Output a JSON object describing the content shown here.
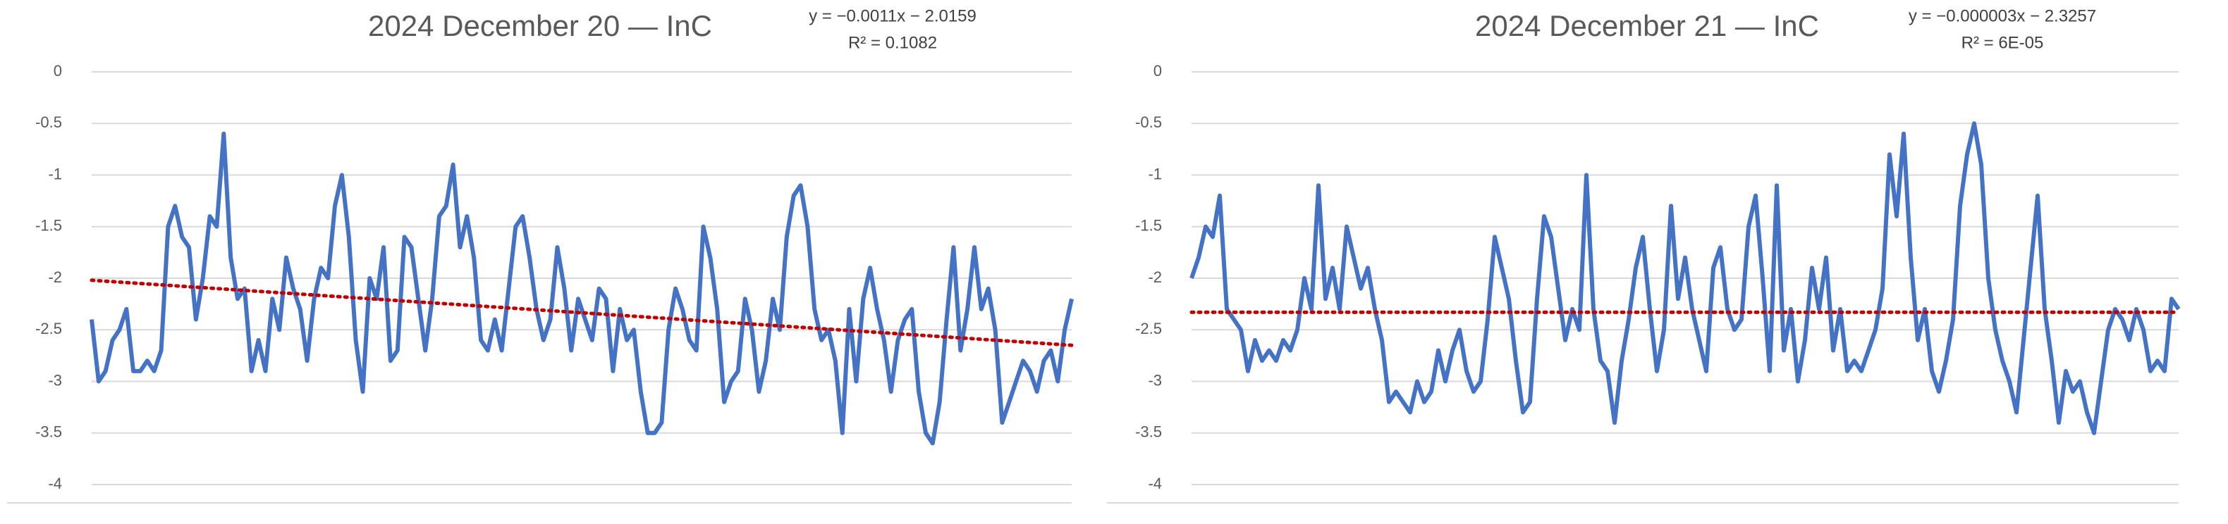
{
  "chart_data": [
    {
      "type": "line",
      "title": "2024 December 20 — InC",
      "series": [
        {
          "color": "#4472c4",
          "values": [
            -2.4,
            -3.0,
            -2.9,
            -2.6,
            -2.5,
            -2.3,
            -2.9,
            -2.9,
            -2.8,
            -2.9,
            -2.7,
            -1.5,
            -1.3,
            -1.6,
            -1.7,
            -2.4,
            -2.0,
            -1.4,
            -1.5,
            -0.6,
            -1.8,
            -2.2,
            -2.1,
            -2.9,
            -2.6,
            -2.9,
            -2.2,
            -2.5,
            -1.8,
            -2.1,
            -2.3,
            -2.8,
            -2.2,
            -1.9,
            -2.0,
            -1.3,
            -1.0,
            -1.6,
            -2.6,
            -3.1,
            -2.0,
            -2.2,
            -1.7,
            -2.8,
            -2.7,
            -1.6,
            -1.7,
            -2.2,
            -2.7,
            -2.2,
            -1.4,
            -1.3,
            -0.9,
            -1.7,
            -1.4,
            -1.8,
            -2.6,
            -2.7,
            -2.4,
            -2.7,
            -2.1,
            -1.5,
            -1.4,
            -1.8,
            -2.3,
            -2.6,
            -2.4,
            -1.7,
            -2.1,
            -2.7,
            -2.2,
            -2.4,
            -2.6,
            -2.1,
            -2.2,
            -2.9,
            -2.3,
            -2.6,
            -2.5,
            -3.1,
            -3.5,
            -3.5,
            -3.4,
            -2.5,
            -2.1,
            -2.3,
            -2.6,
            -2.7,
            -1.5,
            -1.8,
            -2.3,
            -3.2,
            -3.0,
            -2.9,
            -2.2,
            -2.5,
            -3.1,
            -2.8,
            -2.2,
            -2.5,
            -1.6,
            -1.2,
            -1.1,
            -1.5,
            -2.3,
            -2.6,
            -2.5,
            -2.8,
            -3.5,
            -2.3,
            -3.0,
            -2.2,
            -1.9,
            -2.3,
            -2.6,
            -3.1,
            -2.6,
            -2.4,
            -2.3,
            -3.1,
            -3.5,
            -3.6,
            -3.2,
            -2.4,
            -1.7,
            -2.7,
            -2.3,
            -1.7,
            -2.3,
            -2.1,
            -2.5,
            -3.4,
            -3.2,
            -3.0,
            -2.8,
            -2.9,
            -3.1,
            -2.8,
            -2.7,
            -3.0,
            -2.5,
            -2.2
          ]
        }
      ],
      "trendline": {
        "color": "#c00000",
        "values": [
          -2.02,
          -2.65
        ],
        "equation": "y = −0.0011x − 2.0159",
        "r2": "R² = 0.1082"
      },
      "ylim": [
        -4,
        0
      ],
      "yticks": [
        0,
        -0.5,
        -1,
        -1.5,
        -2,
        -2.5,
        -3,
        -3.5,
        -4
      ],
      "grid": true
    },
    {
      "type": "line",
      "title": "2024 December 21 — InC",
      "series": [
        {
          "color": "#4472c4",
          "values": [
            -2.0,
            -1.8,
            -1.5,
            -1.6,
            -1.2,
            -2.3,
            -2.4,
            -2.5,
            -2.9,
            -2.6,
            -2.8,
            -2.7,
            -2.8,
            -2.6,
            -2.7,
            -2.5,
            -2.0,
            -2.3,
            -1.1,
            -2.2,
            -1.9,
            -2.3,
            -1.5,
            -1.8,
            -2.1,
            -1.9,
            -2.3,
            -2.6,
            -3.2,
            -3.1,
            -3.2,
            -3.3,
            -3.0,
            -3.2,
            -3.1,
            -2.7,
            -3.0,
            -2.7,
            -2.5,
            -2.9,
            -3.1,
            -3.0,
            -2.4,
            -1.6,
            -1.9,
            -2.2,
            -2.8,
            -3.3,
            -3.2,
            -2.2,
            -1.4,
            -1.6,
            -2.1,
            -2.6,
            -2.3,
            -2.5,
            -1.0,
            -2.3,
            -2.8,
            -2.9,
            -3.4,
            -2.8,
            -2.4,
            -1.9,
            -1.6,
            -2.3,
            -2.9,
            -2.5,
            -1.3,
            -2.2,
            -1.8,
            -2.3,
            -2.6,
            -2.9,
            -1.9,
            -1.7,
            -2.3,
            -2.5,
            -2.4,
            -1.5,
            -1.2,
            -2.0,
            -2.9,
            -1.1,
            -2.7,
            -2.3,
            -3.0,
            -2.6,
            -1.9,
            -2.3,
            -1.8,
            -2.7,
            -2.3,
            -2.9,
            -2.8,
            -2.9,
            -2.7,
            -2.5,
            -2.1,
            -0.8,
            -1.4,
            -0.6,
            -1.8,
            -2.6,
            -2.3,
            -2.9,
            -3.1,
            -2.8,
            -2.4,
            -1.3,
            -0.8,
            -0.5,
            -0.9,
            -2.0,
            -2.5,
            -2.8,
            -3.0,
            -3.3,
            -2.6,
            -1.9,
            -1.2,
            -2.3,
            -2.8,
            -3.4,
            -2.9,
            -3.1,
            -3.0,
            -3.3,
            -3.5,
            -3.0,
            -2.5,
            -2.3,
            -2.4,
            -2.6,
            -2.3,
            -2.5,
            -2.9,
            -2.8,
            -2.9,
            -2.2,
            -2.3
          ]
        }
      ],
      "trendline": {
        "color": "#c00000",
        "values": [
          -2.33,
          -2.33
        ],
        "equation": "y = −0.000003x − 2.3257",
        "r2": "R² = 6E-05"
      },
      "ylim": [
        -4,
        0
      ],
      "yticks": [
        0,
        -0.5,
        -1,
        -1.5,
        -2,
        -2.5,
        -3,
        -3.5,
        -4
      ],
      "grid": true
    }
  ]
}
